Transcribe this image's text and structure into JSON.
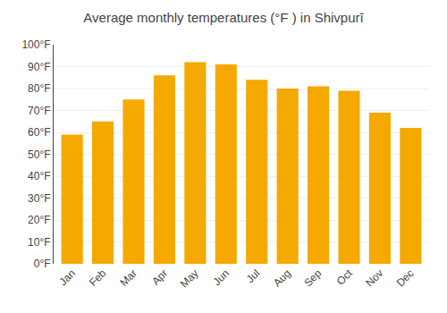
{
  "chart_data": {
    "type": "bar",
    "title": "Average monthly temperatures (°F ) in Shivpurī",
    "categories": [
      "Jan",
      "Feb",
      "Mar",
      "Apr",
      "May",
      "Jun",
      "Jul",
      "Aug",
      "Sep",
      "Oct",
      "Nov",
      "Dec"
    ],
    "values": [
      59,
      65,
      75,
      86,
      92,
      91,
      84,
      80,
      81,
      79,
      69,
      62
    ],
    "color": "#F5A800",
    "ylim": [
      0,
      100
    ],
    "yticks": [
      {
        "value": 0,
        "label": "0°F"
      },
      {
        "value": 10,
        "label": "10°F"
      },
      {
        "value": 20,
        "label": "20°F"
      },
      {
        "value": 30,
        "label": "30°F"
      },
      {
        "value": 40,
        "label": "40°F"
      },
      {
        "value": 50,
        "label": "50°F"
      },
      {
        "value": 60,
        "label": "60°F"
      },
      {
        "value": 70,
        "label": "70°F"
      },
      {
        "value": 80,
        "label": "80°F"
      },
      {
        "value": 90,
        "label": "90°F"
      },
      {
        "value": 100,
        "label": "100°F"
      }
    ],
    "grid": true
  }
}
